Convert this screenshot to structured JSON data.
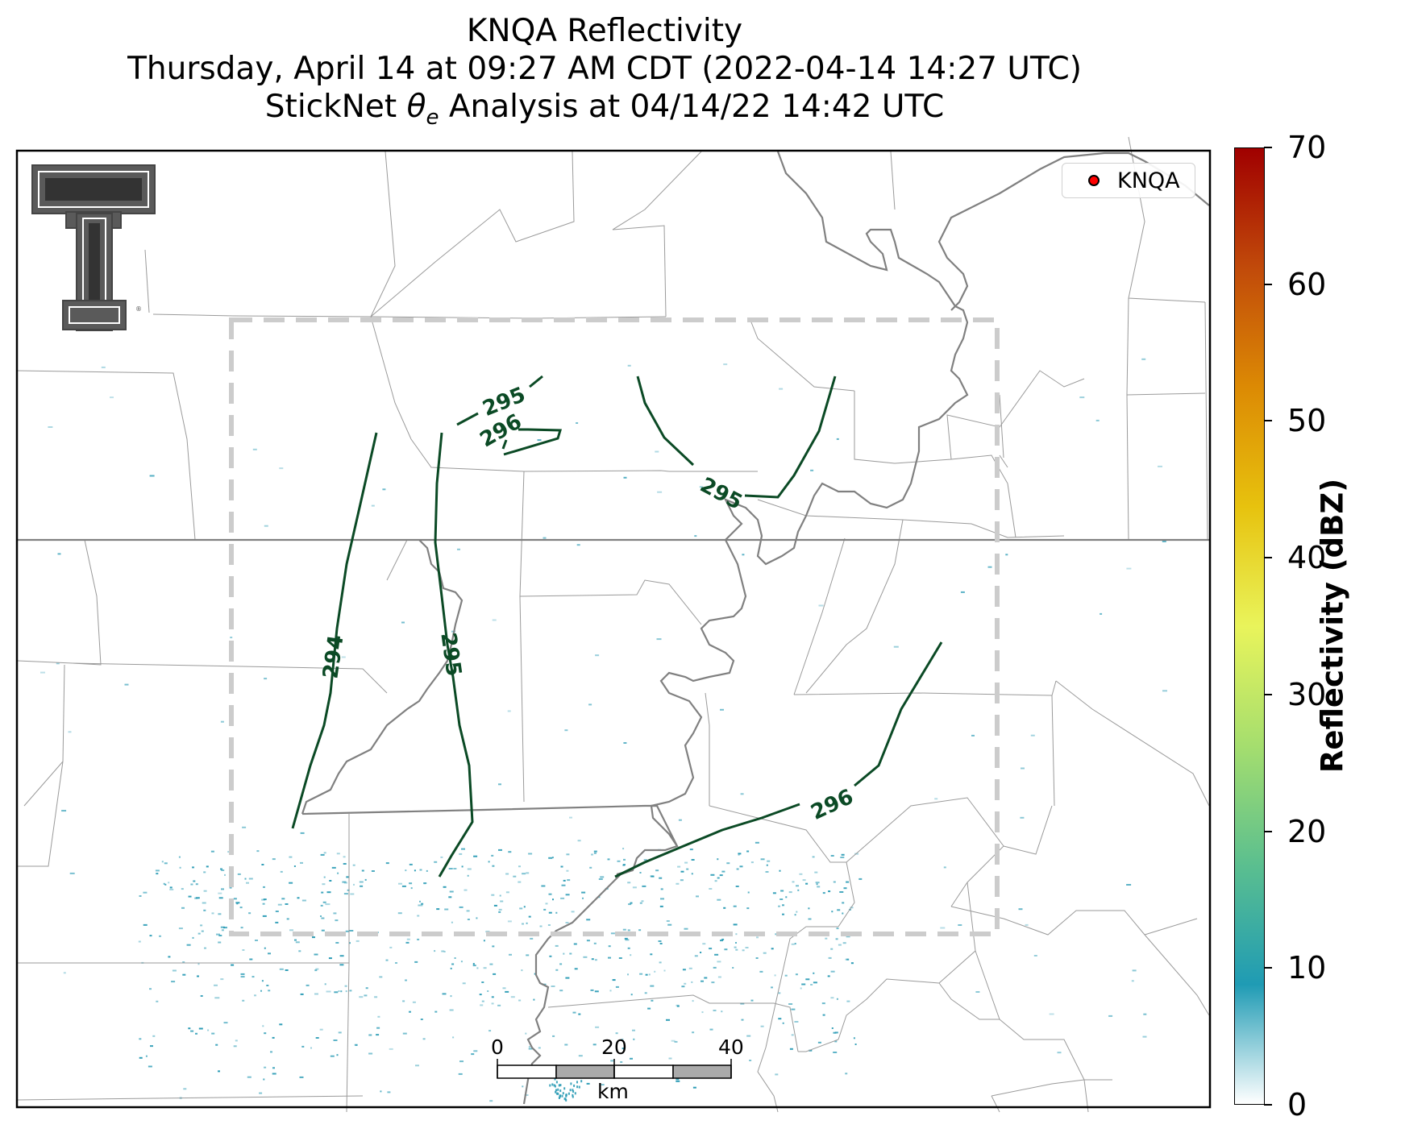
{
  "title": {
    "line1": "KNQA Reflectivity",
    "line2": "Thursday, April 14 at 09:27 AM CDT (2022-04-14 14:27 UTC)",
    "line3_prefix": "StickNet ",
    "line3_symbol": "θ",
    "line3_sub": "e",
    "line3_suffix": " Analysis at 04/14/22 14:42 UTC"
  },
  "legend": {
    "label": "KNQA",
    "marker_color": "#ff0000"
  },
  "colorbar": {
    "label": "Reflectivity (dBZ)",
    "min": 0,
    "max": 70,
    "ticks": [
      "0",
      "10",
      "20",
      "30",
      "40",
      "50",
      "60",
      "70"
    ],
    "colors": [
      "#ffffff",
      "#1f9bb4",
      "#5bbf8f",
      "#a5de6e",
      "#e9f45b",
      "#e7c20e",
      "#dc8a04",
      "#c14a0a",
      "#a00000"
    ]
  },
  "contours": [
    {
      "value": "294",
      "label": "294"
    },
    {
      "value": "295",
      "label": "295"
    },
    {
      "value": "295",
      "label": "295"
    },
    {
      "value": "295",
      "label": "295"
    },
    {
      "value": "296",
      "label": "296"
    },
    {
      "value": "296",
      "label": "296"
    }
  ],
  "scale_bar": {
    "ticks": [
      "0",
      "20",
      "40"
    ],
    "unit": "km"
  },
  "colors": {
    "contour": "#0b4a25",
    "county_border": "#9a9a9a",
    "state_border": "#808080",
    "river": "#808080",
    "analysis_box": "#cccccc",
    "echo": "#2a9bb5"
  },
  "logo": {
    "name": "texas-tech-double-t-logo",
    "letter": "T"
  }
}
